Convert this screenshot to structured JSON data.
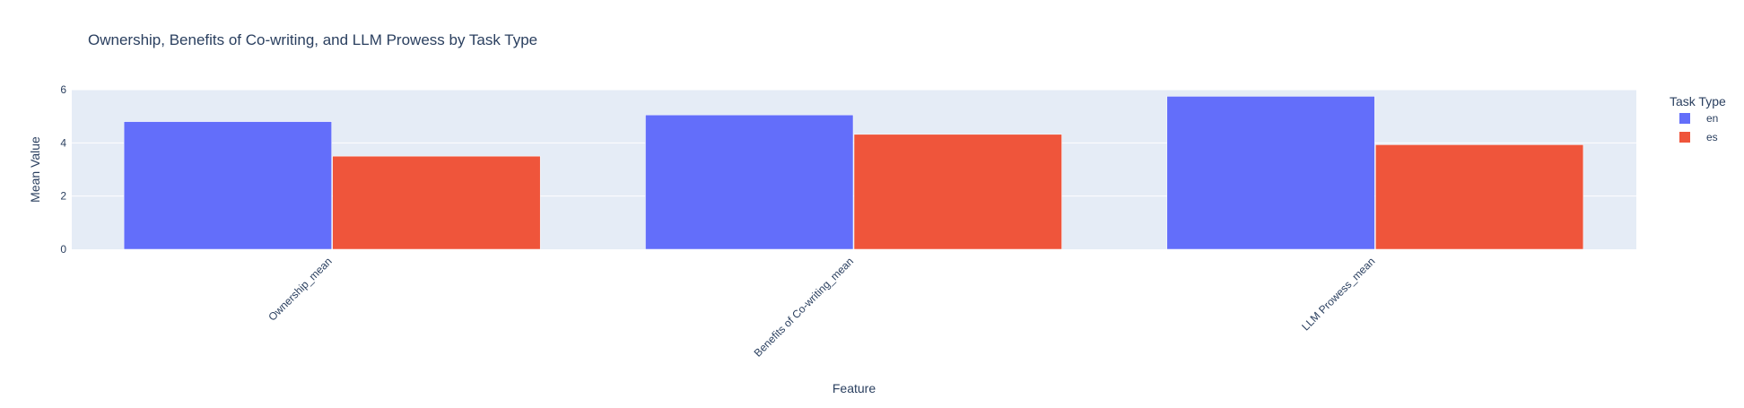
{
  "chart_data": {
    "type": "bar",
    "title": "Ownership, Benefits of Co-writing, and LLM Prowess by Task Type",
    "xlabel": "Feature",
    "ylabel": "Mean Value",
    "categories": [
      "Ownership_mean",
      "Benefits of Co-writing_mean",
      "LLM Prowess_mean"
    ],
    "series": [
      {
        "name": "en",
        "values": [
          4.8,
          5.05,
          5.75
        ],
        "color": "#636efa"
      },
      {
        "name": "es",
        "values": [
          3.5,
          4.32,
          3.93
        ],
        "color": "#ef553b"
      }
    ],
    "ylim": [
      0,
      6
    ],
    "yticks": [
      0,
      2,
      4,
      6
    ],
    "grid": true,
    "legend": {
      "title": "Task Type",
      "placement": "top-right"
    },
    "colors": {
      "plot_bg": "#e5ecf6",
      "grid": "#ffffff",
      "text": "#2a3f5f"
    }
  }
}
